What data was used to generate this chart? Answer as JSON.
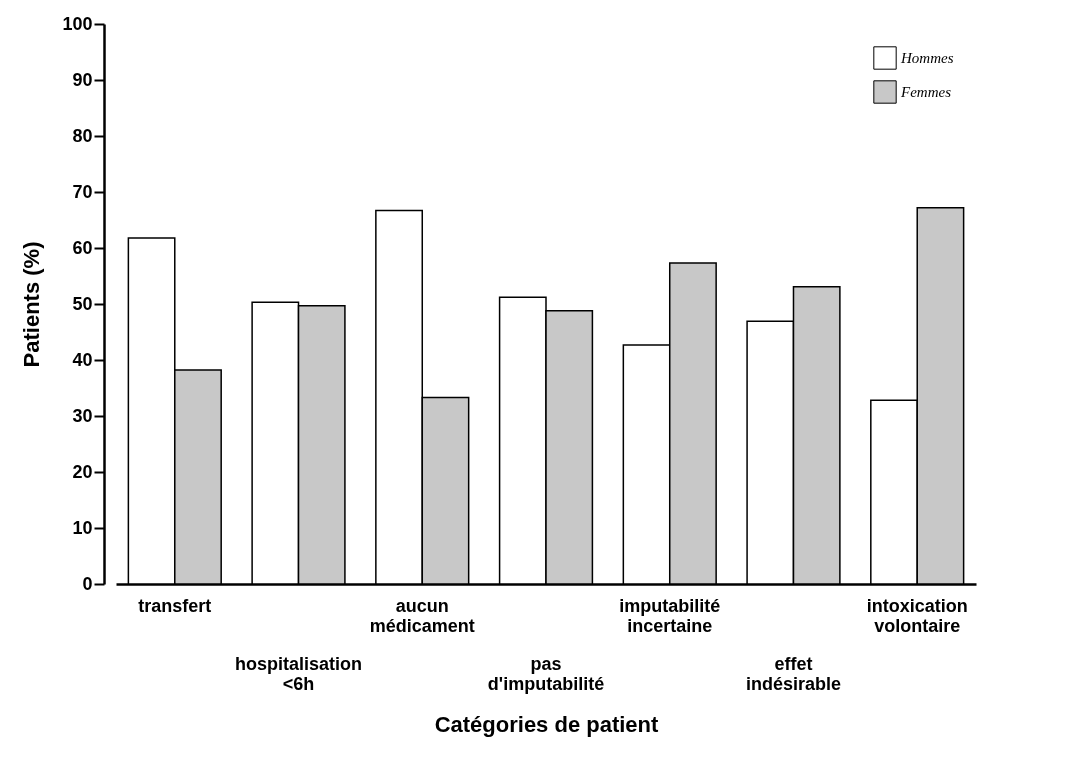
{
  "chart_data": {
    "type": "bar",
    "xlabel": "Catégories de patient",
    "ylabel": "Patients (%)",
    "categories": [
      "transfert",
      "hospitalisation\n<6h",
      "aucun\nmédicament",
      "pas\nd'imputabilité",
      "imputabilité\nincertaine",
      "effet\nindésirable",
      "intoxication\nvolontaire"
    ],
    "series": [
      {
        "name": "Hommes",
        "color": "#ffffff",
        "values": [
          61.8,
          50.3,
          66.7,
          51.2,
          42.7,
          46.9,
          32.8
        ]
      },
      {
        "name": "Femmes",
        "color": "#c8c8c8",
        "values": [
          38.2,
          49.7,
          33.3,
          48.8,
          57.3,
          53.1,
          67.2
        ]
      }
    ],
    "ylim": [
      0,
      100
    ],
    "yticks": [
      0,
      10,
      20,
      30,
      40,
      50,
      60,
      70,
      80,
      90,
      100
    ],
    "grid": false,
    "legend": "top right"
  }
}
